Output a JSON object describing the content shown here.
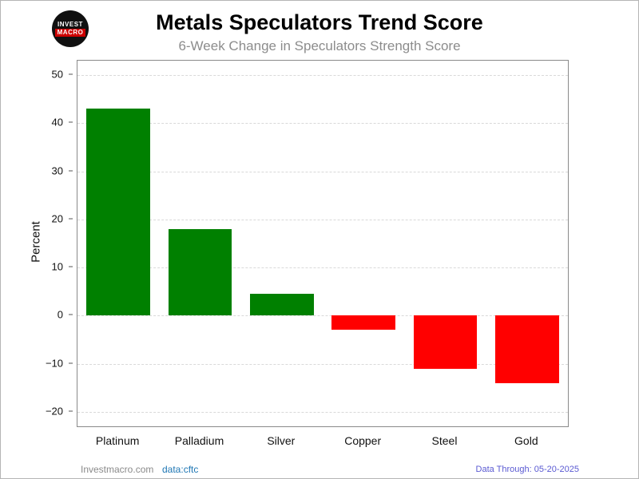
{
  "header": {
    "title": "Metals Speculators Trend Score",
    "subtitle": "6-Week Change in Speculators Strength Score",
    "logo": {
      "line1": "INVEST",
      "line2": "MACRO"
    }
  },
  "chart_data": {
    "type": "bar",
    "title": "Metals Speculators Trend Score",
    "subtitle": "6-Week Change in Speculators Strength Score",
    "categories": [
      "Platinum",
      "Palladium",
      "Silver",
      "Copper",
      "Steel",
      "Gold"
    ],
    "values": [
      43,
      18,
      4.5,
      -3,
      -11,
      -14
    ],
    "colors": {
      "positive": "#008000",
      "negative": "#ff0000"
    },
    "xlabel": "",
    "ylabel": "Percent",
    "ylim": [
      -23,
      53
    ],
    "yticks": [
      -20,
      -10,
      0,
      10,
      20,
      30,
      40,
      50
    ],
    "grid": true,
    "grid_style": "dashed",
    "legend": "none"
  },
  "footer": {
    "site": "Investmacro.com",
    "source": "data:cftc",
    "data_through": "Data Through: 05-20-2025"
  }
}
